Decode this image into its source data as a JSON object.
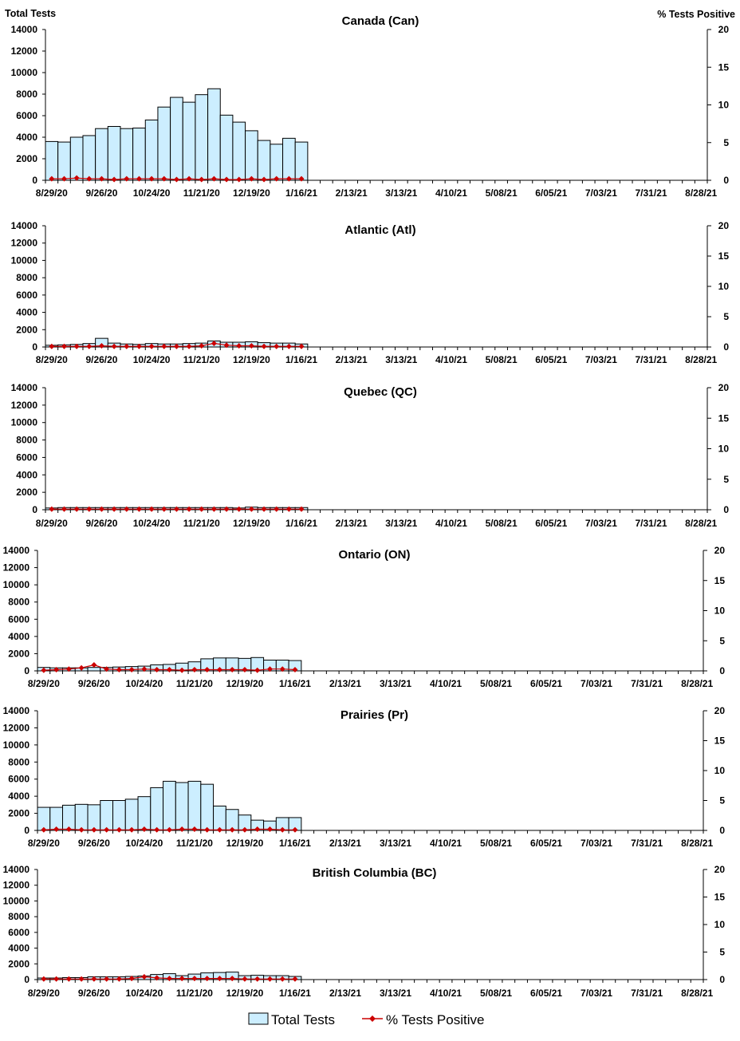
{
  "colors": {
    "bar_fill": "#cceeff",
    "bar_stroke": "#000000",
    "line": "#cc0000",
    "marker": "#cc0000",
    "axis": "#000000"
  },
  "left_axis_title": "Total Tests",
  "right_axis_title": "% Tests Positive",
  "legend": {
    "bars": "Total Tests",
    "line": "% Tests Positive"
  },
  "chart_data": [
    {
      "type": "bar",
      "title": "Canada (Can)",
      "x_labels": [
        "8/29/20",
        "9/26/20",
        "10/24/20",
        "11/21/20",
        "12/19/20",
        "1/16/21",
        "2/13/21",
        "3/13/21",
        "4/10/21",
        "5/08/21",
        "6/05/21",
        "7/03/21",
        "7/31/21",
        "8/28/21"
      ],
      "week_count": 53,
      "ylim": [
        0,
        14000
      ],
      "y_ticks": [
        0,
        2000,
        4000,
        6000,
        8000,
        10000,
        12000,
        14000
      ],
      "y2lim": [
        0,
        20
      ],
      "y2_ticks": [
        0,
        5,
        10,
        15,
        20
      ],
      "series": [
        {
          "name": "Total Tests",
          "type": "bar",
          "values": [
            3600,
            3550,
            4000,
            4150,
            4800,
            5000,
            4800,
            4850,
            5600,
            6800,
            7700,
            7250,
            7950,
            8500,
            6050,
            5400,
            4600,
            3700,
            3350,
            3900,
            3550
          ]
        },
        {
          "name": "% Tests Positive",
          "type": "line",
          "axis": "right",
          "values": [
            0.2,
            0.2,
            0.3,
            0.2,
            0.2,
            0.1,
            0.2,
            0.2,
            0.2,
            0.2,
            0.1,
            0.2,
            0.1,
            0.2,
            0.1,
            0.1,
            0.2,
            0.1,
            0.2,
            0.2,
            0.2
          ]
        }
      ]
    },
    {
      "type": "bar",
      "title": "Atlantic (Atl)",
      "x_labels": [
        "8/29/20",
        "9/26/20",
        "10/24/20",
        "11/21/20",
        "12/19/20",
        "1/16/21",
        "2/13/21",
        "3/13/21",
        "4/10/21",
        "5/08/21",
        "6/05/21",
        "7/03/21",
        "7/31/21",
        "8/28/21"
      ],
      "week_count": 53,
      "ylim": [
        0,
        14000
      ],
      "y_ticks": [
        0,
        2000,
        4000,
        6000,
        8000,
        10000,
        12000,
        14000
      ],
      "y2lim": [
        0,
        20
      ],
      "y2_ticks": [
        0,
        5,
        10,
        15,
        20
      ],
      "series": [
        {
          "name": "Total Tests",
          "type": "bar",
          "values": [
            200,
            250,
            300,
            400,
            1000,
            450,
            350,
            300,
            400,
            350,
            350,
            400,
            450,
            700,
            550,
            550,
            600,
            500,
            450,
            450,
            350
          ]
        },
        {
          "name": "% Tests Positive",
          "type": "line",
          "axis": "right",
          "values": [
            0.1,
            0.1,
            0.1,
            0.1,
            0.2,
            0.1,
            0.1,
            0.1,
            0.1,
            0.1,
            0.1,
            0.1,
            0.2,
            0.6,
            0.3,
            0.2,
            0.2,
            0.1,
            0.1,
            0.1,
            0.1
          ]
        }
      ]
    },
    {
      "type": "bar",
      "title": "Quebec (QC)",
      "x_labels": [
        "8/29/20",
        "9/26/20",
        "10/24/20",
        "11/21/20",
        "12/19/20",
        "1/16/21",
        "2/13/21",
        "3/13/21",
        "4/10/21",
        "5/08/21",
        "6/05/21",
        "7/03/21",
        "7/31/21",
        "8/28/21"
      ],
      "week_count": 53,
      "ylim": [
        0,
        14000
      ],
      "y_ticks": [
        0,
        2000,
        4000,
        6000,
        8000,
        10000,
        12000,
        14000
      ],
      "y2lim": [
        0,
        20
      ],
      "y2_ticks": [
        0,
        5,
        10,
        15,
        20
      ],
      "series": [
        {
          "name": "Total Tests",
          "type": "bar",
          "values": [
            200,
            250,
            250,
            250,
            250,
            250,
            250,
            250,
            250,
            250,
            250,
            250,
            250,
            250,
            250,
            200,
            300,
            250,
            250,
            250,
            250
          ]
        },
        {
          "name": "% Tests Positive",
          "type": "line",
          "axis": "right",
          "values": [
            0.1,
            0.1,
            0.1,
            0.1,
            0.1,
            0.1,
            0.1,
            0.1,
            0.1,
            0.1,
            0.1,
            0.1,
            0.1,
            0.1,
            0.1,
            0.1,
            0.1,
            0.1,
            0.1,
            0.1,
            0.1
          ]
        }
      ]
    },
    {
      "type": "bar",
      "title": "Ontario (ON)",
      "x_labels": [
        "8/29/20",
        "9/26/20",
        "10/24/20",
        "11/21/20",
        "12/19/20",
        "1/16/21",
        "2/13/21",
        "3/13/21",
        "4/10/21",
        "5/08/21",
        "6/05/21",
        "7/03/21",
        "7/31/21",
        "8/28/21"
      ],
      "week_count": 53,
      "ylim": [
        0,
        14000
      ],
      "y_ticks": [
        0,
        2000,
        4000,
        6000,
        8000,
        10000,
        12000,
        14000
      ],
      "y2lim": [
        0,
        20
      ],
      "y2_ticks": [
        0,
        5,
        10,
        15,
        20
      ],
      "series": [
        {
          "name": "Total Tests",
          "type": "bar",
          "values": [
            400,
            350,
            350,
            350,
            400,
            400,
            450,
            500,
            550,
            700,
            750,
            900,
            1050,
            1400,
            1500,
            1500,
            1450,
            1550,
            1250,
            1250,
            1200
          ]
        },
        {
          "name": "% Tests Positive",
          "type": "line",
          "axis": "right",
          "values": [
            0.1,
            0.2,
            0.3,
            0.5,
            1.0,
            0.3,
            0.2,
            0.2,
            0.3,
            0.2,
            0.2,
            0.1,
            0.2,
            0.2,
            0.2,
            0.2,
            0.2,
            0.1,
            0.3,
            0.3,
            0.2
          ]
        }
      ]
    },
    {
      "type": "bar",
      "title": "Prairies (Pr)",
      "x_labels": [
        "8/29/20",
        "9/26/20",
        "10/24/20",
        "11/21/20",
        "12/19/20",
        "1/16/21",
        "2/13/21",
        "3/13/21",
        "4/10/21",
        "5/08/21",
        "6/05/21",
        "7/03/21",
        "7/31/21",
        "8/28/21"
      ],
      "week_count": 53,
      "ylim": [
        0,
        14000
      ],
      "y_ticks": [
        0,
        2000,
        4000,
        6000,
        8000,
        10000,
        12000,
        14000
      ],
      "y2lim": [
        0,
        20
      ],
      "y2_ticks": [
        0,
        5,
        10,
        15,
        20
      ],
      "series": [
        {
          "name": "Total Tests",
          "type": "bar",
          "values": [
            2700,
            2700,
            2950,
            3050,
            3000,
            3500,
            3500,
            3650,
            3950,
            5000,
            5750,
            5600,
            5750,
            5400,
            2850,
            2450,
            1800,
            1200,
            1100,
            1500,
            1500
          ]
        },
        {
          "name": "% Tests Positive",
          "type": "line",
          "axis": "right",
          "values": [
            0.1,
            0.2,
            0.2,
            0.1,
            0.1,
            0.1,
            0.1,
            0.1,
            0.2,
            0.1,
            0.1,
            0.2,
            0.2,
            0.1,
            0.1,
            0.1,
            0.1,
            0.2,
            0.2,
            0.1,
            0.1
          ]
        }
      ]
    },
    {
      "type": "bar",
      "title": "British Columbia (BC)",
      "x_labels": [
        "8/29/20",
        "9/26/20",
        "10/24/20",
        "11/21/20",
        "12/19/20",
        "1/16/21",
        "2/13/21",
        "3/13/21",
        "4/10/21",
        "5/08/21",
        "6/05/21",
        "7/03/21",
        "7/31/21",
        "8/28/21"
      ],
      "week_count": 53,
      "ylim": [
        0,
        14000
      ],
      "y_ticks": [
        0,
        2000,
        4000,
        6000,
        8000,
        10000,
        12000,
        14000
      ],
      "y2lim": [
        0,
        20
      ],
      "y2_ticks": [
        0,
        5,
        10,
        15,
        20
      ],
      "series": [
        {
          "name": "Total Tests",
          "type": "bar",
          "values": [
            200,
            200,
            250,
            250,
            350,
            350,
            350,
            400,
            450,
            650,
            750,
            500,
            700,
            850,
            900,
            950,
            500,
            550,
            500,
            500,
            400
          ]
        },
        {
          "name": "% Tests Positive",
          "type": "line",
          "axis": "right",
          "values": [
            0.1,
            0.1,
            0.1,
            0.1,
            0.1,
            0.1,
            0.1,
            0.2,
            0.5,
            0.3,
            0.2,
            0.2,
            0.2,
            0.2,
            0.2,
            0.2,
            0.1,
            0.1,
            0.1,
            0.1,
            0.1
          ]
        }
      ]
    }
  ]
}
